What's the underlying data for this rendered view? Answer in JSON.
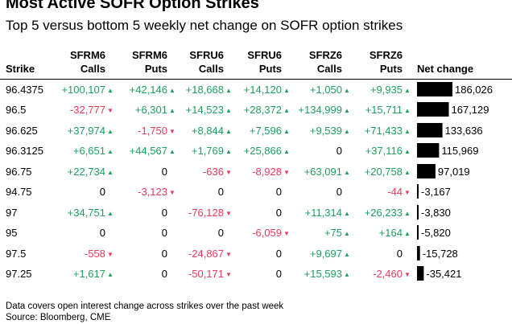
{
  "title": "Most Active SOFR Option Strikes",
  "subtitle": "Top 5 versus bottom 5 weekly net change on SOFR option strikes",
  "columns": [
    {
      "key": "strike",
      "line1": "",
      "line2": "Strike"
    },
    {
      "key": "sfrm6_calls",
      "line1": "SFRM6",
      "line2": "Calls"
    },
    {
      "key": "sfrm6_puts",
      "line1": "SFRM6",
      "line2": "Puts"
    },
    {
      "key": "sfru6_calls",
      "line1": "SFRU6",
      "line2": "Calls"
    },
    {
      "key": "sfru6_puts",
      "line1": "SFRU6",
      "line2": "Puts"
    },
    {
      "key": "sfrz6_calls",
      "line1": "SFRZ6",
      "line2": "Calls"
    },
    {
      "key": "sfrz6_puts",
      "line1": "SFRZ6",
      "line2": "Puts"
    },
    {
      "key": "net_change",
      "line1": "",
      "line2": "Net change"
    }
  ],
  "rows": [
    {
      "strike": "96.4375",
      "cells": [
        "+100,107",
        "+42,146",
        "+18,668",
        "+14,120",
        "+1,050",
        "+9,935"
      ],
      "net_label": "186,026"
    },
    {
      "strike": "96.5",
      "cells": [
        "-32,777",
        "+6,301",
        "+14,523",
        "+28,372",
        "+134,999",
        "+15,711"
      ],
      "net_label": "167,129"
    },
    {
      "strike": "96.625",
      "cells": [
        "+37,974",
        "-1,750",
        "+8,844",
        "+7,596",
        "+9,539",
        "+71,433"
      ],
      "net_label": "133,636"
    },
    {
      "strike": "96.3125",
      "cells": [
        "+6,651",
        "+44,567",
        "+1,769",
        "+25,866",
        "0",
        "+37,116"
      ],
      "net_label": "115,969"
    },
    {
      "strike": "96.75",
      "cells": [
        "+22,734",
        "0",
        "-636",
        "-8,928",
        "+63,091",
        "+20,758"
      ],
      "net_label": "97,019"
    },
    {
      "strike": "94.75",
      "cells": [
        "0",
        "-3,123",
        "0",
        "0",
        "0",
        "-44"
      ],
      "net_label": "-3,167"
    },
    {
      "strike": "97",
      "cells": [
        "+34,751",
        "0",
        "-76,128",
        "0",
        "+11,314",
        "+26,233"
      ],
      "net_label": "-3,830"
    },
    {
      "strike": "95",
      "cells": [
        "0",
        "0",
        "0",
        "-6,059",
        "+75",
        "+164"
      ],
      "net_label": "-5,820"
    },
    {
      "strike": "97.5",
      "cells": [
        "-558",
        "0",
        "-24,867",
        "0",
        "+9,697",
        "0"
      ],
      "net_label": "-15,728"
    },
    {
      "strike": "97.25",
      "cells": [
        "+1,617",
        "0",
        "-50,171",
        "0",
        "+15,593",
        "-2,460"
      ],
      "net_label": "-35,421"
    }
  ],
  "colors": {
    "positive": "#1fa060",
    "negative": "#e83c5c",
    "bar": "#000000"
  },
  "footnote": {
    "line1": "Data covers open interest change across strikes over the past week",
    "line2": "Source: Bloomberg, CME"
  },
  "chart_data": {
    "type": "table",
    "title": "Most Active SOFR Option Strikes",
    "subtitle": "Top 5 versus bottom 5 weekly net change on SOFR option strikes",
    "columns": [
      "Strike",
      "SFRM6 Calls",
      "SFRM6 Puts",
      "SFRU6 Calls",
      "SFRU6 Puts",
      "SFRZ6 Calls",
      "SFRZ6 Puts",
      "Net change"
    ],
    "categories": [
      "96.4375",
      "96.5",
      "96.625",
      "96.3125",
      "96.75",
      "94.75",
      "97",
      "95",
      "97.5",
      "97.25"
    ],
    "series": [
      {
        "name": "SFRM6 Calls",
        "values": [
          100107,
          -32777,
          37974,
          6651,
          22734,
          0,
          34751,
          0,
          -558,
          1617
        ]
      },
      {
        "name": "SFRM6 Puts",
        "values": [
          42146,
          6301,
          -1750,
          44567,
          0,
          -3123,
          0,
          0,
          0,
          0
        ]
      },
      {
        "name": "SFRU6 Calls",
        "values": [
          18668,
          14523,
          8844,
          1769,
          -636,
          0,
          -76128,
          0,
          -24867,
          -50171
        ]
      },
      {
        "name": "SFRU6 Puts",
        "values": [
          14120,
          28372,
          7596,
          25866,
          -8928,
          0,
          0,
          -6059,
          0,
          0
        ]
      },
      {
        "name": "SFRZ6 Calls",
        "values": [
          1050,
          134999,
          9539,
          0,
          63091,
          0,
          11314,
          75,
          9697,
          15593
        ]
      },
      {
        "name": "SFRZ6 Puts",
        "values": [
          9935,
          15711,
          71433,
          37116,
          20758,
          -44,
          26233,
          164,
          0,
          -2460
        ]
      },
      {
        "name": "Net change",
        "values": [
          186026,
          167129,
          133636,
          115969,
          97019,
          -3167,
          -3830,
          -5820,
          -15728,
          -35421
        ]
      }
    ]
  }
}
